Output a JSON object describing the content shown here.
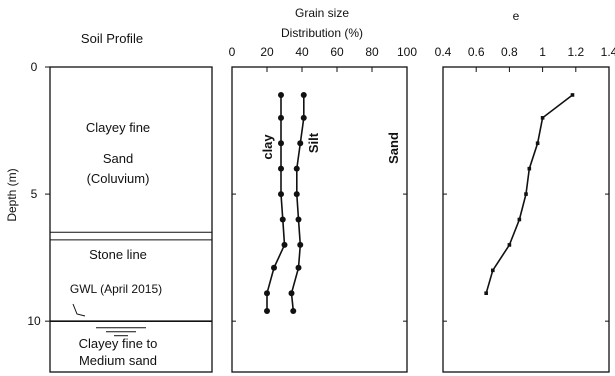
{
  "soil_profile": {
    "title": "Soil Profile",
    "layers": [
      {
        "label_lines": [
          "Clayey fine",
          "Sand",
          "(Coluvium)"
        ],
        "top": 0,
        "bottom": 6.5
      },
      {
        "label_lines": [
          "Stone line"
        ],
        "top": 6.8,
        "bottom": 10
      },
      {
        "label_lines": [
          "Clayey fine to",
          "Medium sand"
        ],
        "top": 10,
        "bottom": 12
      }
    ],
    "double_line_depths": [
      6.5,
      6.8
    ],
    "boundary_depths": [
      10
    ],
    "gwl": {
      "label": "GWL (April 2015)",
      "depth": 10.1
    }
  },
  "chart_data": [
    {
      "type": "line",
      "title": "Grain size Distribution (%)",
      "title_lines": [
        "Grain size",
        "Distribution (%)"
      ],
      "xlabel": "",
      "ylabel": "Depth (m)",
      "xlim": [
        0,
        100
      ],
      "ylim": [
        12,
        0
      ],
      "x_ticks": [
        0,
        20,
        40,
        60,
        80,
        100
      ],
      "y_ticks": [
        0,
        5,
        10
      ],
      "series": [
        {
          "name": "clay",
          "x": [
            28,
            28,
            28,
            28,
            28,
            29,
            30,
            24,
            20,
            20
          ],
          "y": [
            1.1,
            2,
            3,
            4,
            5,
            6,
            7,
            7.9,
            8.9,
            9.6
          ]
        },
        {
          "name": "Silt",
          "x": [
            41,
            41,
            39,
            37,
            37,
            38,
            39,
            38,
            34,
            35
          ],
          "y": [
            1.1,
            2,
            3,
            4,
            5,
            6,
            7,
            7.9,
            8.9,
            9.6
          ]
        }
      ],
      "region_labels": [
        "Sand"
      ]
    },
    {
      "type": "line",
      "title": "e",
      "xlabel": "",
      "ylabel": "",
      "xlim": [
        0.4,
        1.4
      ],
      "ylim": [
        12,
        0
      ],
      "x_ticks": [
        0.4,
        0.6,
        0.8,
        1.0,
        1.2,
        1.4
      ],
      "y_ticks": [
        0,
        5,
        10
      ],
      "series": [
        {
          "x": [
            1.18,
            1.0,
            0.97,
            0.92,
            0.9,
            0.86,
            0.8,
            0.7,
            0.66
          ],
          "y": [
            1.1,
            2.0,
            3.0,
            4.0,
            5.0,
            6.0,
            7.0,
            8.0,
            8.9
          ]
        }
      ]
    }
  ]
}
